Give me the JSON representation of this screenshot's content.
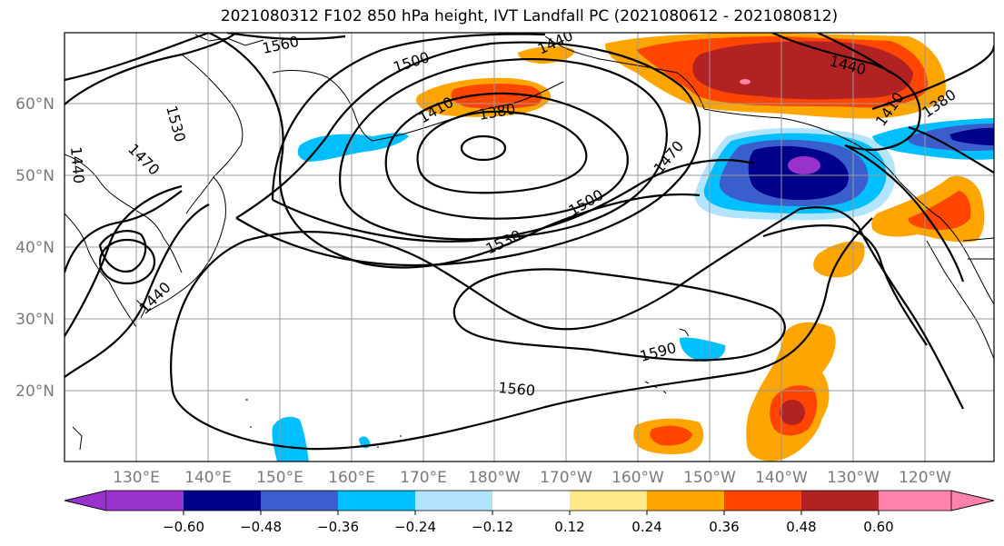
{
  "title": "2021080312 F102 850 hPa height, IVT Landfall PC (2021080612 - 2021080812)",
  "lon_labels": [
    "130°E",
    "140°E",
    "150°E",
    "160°E",
    "170°E",
    "180°W",
    "170°W",
    "160°W",
    "150°W",
    "140°W",
    "130°W",
    "120°W"
  ],
  "lat_labels": [
    "60°N",
    "50°N",
    "40°N",
    "30°N",
    "20°N"
  ],
  "contour_labels": [
    "1560",
    "1440",
    "1500",
    "1530",
    "1410",
    "1380",
    "1470",
    "1440",
    "1440",
    "1410",
    "1380",
    "1470",
    "1500",
    "1530",
    "1590",
    "1560",
    "1440",
    "1440"
  ],
  "colorbar": {
    "tick_labels": [
      "−0.60",
      "−0.48",
      "−0.36",
      "−0.24",
      "−0.12",
      "0.12",
      "0.24",
      "0.36",
      "0.48",
      "0.60"
    ],
    "colors": [
      "#9932cc",
      "#00008b",
      "#3a5fcd",
      "#00bfff",
      "#b2e4ff",
      "#ffffff",
      "#ffe98a",
      "#ffa500",
      "#ff4500",
      "#b22222",
      "#ff82ab"
    ]
  },
  "colors": {
    "positive_light": "#ffe98a",
    "positive_mid": "#ffa500",
    "positive_strong": "#ff4500",
    "positive_max": "#b22222",
    "positive_extreme": "#ff82ab",
    "negative_light": "#b2e4ff",
    "negative_mid": "#00bfff",
    "negative_strong": "#3a5fcd",
    "negative_max": "#00008b",
    "negative_extreme": "#9932cc"
  }
}
